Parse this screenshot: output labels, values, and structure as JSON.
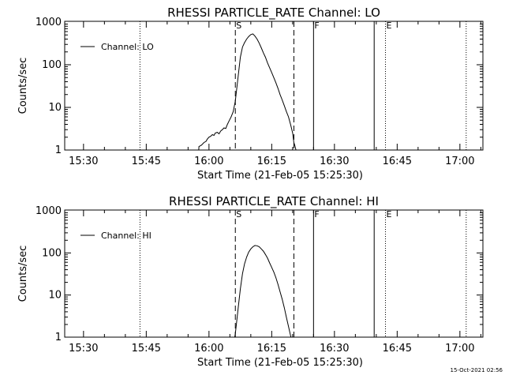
{
  "chart_data": [
    {
      "type": "line",
      "title": "RHESSI PARTICLE_RATE Channel: LO",
      "xlabel": "Start Time (21-Feb-05 15:25:30)",
      "ylabel": "Counts/sec",
      "x_tick_labels": [
        "15:30",
        "15:45",
        "16:00",
        "16:15",
        "16:30",
        "16:45",
        "17:00"
      ],
      "x_tick_minutes": [
        30,
        45,
        60,
        75,
        90,
        105,
        120
      ],
      "xlim_minutes": [
        25.5,
        125.5
      ],
      "y_scale": "log",
      "y_tick_labels": [
        "1",
        "10",
        "100",
        "1000"
      ],
      "ylim": [
        1,
        1000
      ],
      "legend": {
        "label": "Channel: LO",
        "placement": "top-left"
      },
      "markers": [
        {
          "label": "S",
          "minute": 66.3,
          "style": "dashed"
        },
        {
          "label": "",
          "minute": 80.3,
          "style": "dashed"
        },
        {
          "label": "F",
          "minute": 85.0,
          "style": "solid"
        },
        {
          "label": "",
          "minute": 99.5,
          "style": "solid"
        },
        {
          "label": "E",
          "minute": 102.2,
          "style": "dotted"
        },
        {
          "label": "",
          "minute": 43.5,
          "style": "dotted"
        },
        {
          "label": "",
          "minute": 121.5,
          "style": "dotted"
        }
      ],
      "series": [
        {
          "name": "Channel: LO",
          "points": [
            [
              57.5,
              0.8
            ],
            [
              57.6,
              1.2
            ],
            [
              58.2,
              1.3
            ],
            [
              58.8,
              1.5
            ],
            [
              59.3,
              1.6
            ],
            [
              59.6,
              1.8
            ],
            [
              60.0,
              2.0
            ],
            [
              60.4,
              2.1
            ],
            [
              60.8,
              2.3
            ],
            [
              61.2,
              2.2
            ],
            [
              61.5,
              2.5
            ],
            [
              62.0,
              2.6
            ],
            [
              62.4,
              2.4
            ],
            [
              62.8,
              2.8
            ],
            [
              63.2,
              3.0
            ],
            [
              63.6,
              3.3
            ],
            [
              64.0,
              3.2
            ],
            [
              64.4,
              4.0
            ],
            [
              64.8,
              4.8
            ],
            [
              65.3,
              6.0
            ],
            [
              65.8,
              8.0
            ],
            [
              66.3,
              14.0
            ],
            [
              67.0,
              55.0
            ],
            [
              67.5,
              150.0
            ],
            [
              68.0,
              260.0
            ],
            [
              68.5,
              330.0
            ],
            [
              69.0,
              400.0
            ],
            [
              69.5,
              460.0
            ],
            [
              70.0,
              510.0
            ],
            [
              70.5,
              530.0
            ],
            [
              71.0,
              470.0
            ],
            [
              71.5,
              400.0
            ],
            [
              72.0,
              320.0
            ],
            [
              72.5,
              250.0
            ],
            [
              73.0,
              190.0
            ],
            [
              73.5,
              150.0
            ],
            [
              74.0,
              110.0
            ],
            [
              74.5,
              85.0
            ],
            [
              75.0,
              65.0
            ],
            [
              75.5,
              50.0
            ],
            [
              76.0,
              38.0
            ],
            [
              76.5,
              28.0
            ],
            [
              77.0,
              20.0
            ],
            [
              77.5,
              15.0
            ],
            [
              78.0,
              11.0
            ],
            [
              78.5,
              8.0
            ],
            [
              79.0,
              6.0
            ],
            [
              79.5,
              4.0
            ],
            [
              80.0,
              2.5
            ],
            [
              80.3,
              1.5
            ],
            [
              80.5,
              1.3
            ],
            [
              80.8,
              1.0
            ],
            [
              81.0,
              0.8
            ]
          ]
        }
      ]
    },
    {
      "type": "line",
      "title": "RHESSI PARTICLE_RATE Channel: HI",
      "xlabel": "Start Time (21-Feb-05 15:25:30)",
      "ylabel": "Counts/sec",
      "x_tick_labels": [
        "15:30",
        "15:45",
        "16:00",
        "16:15",
        "16:30",
        "16:45",
        "17:00"
      ],
      "x_tick_minutes": [
        30,
        45,
        60,
        75,
        90,
        105,
        120
      ],
      "xlim_minutes": [
        25.5,
        125.5
      ],
      "y_scale": "log",
      "y_tick_labels": [
        "1",
        "10",
        "100",
        "1000"
      ],
      "ylim": [
        1,
        1000
      ],
      "legend": {
        "label": "Channel: HI",
        "placement": "top-left"
      },
      "markers": [
        {
          "label": "S",
          "minute": 66.3,
          "style": "dashed"
        },
        {
          "label": "",
          "minute": 80.3,
          "style": "dashed"
        },
        {
          "label": "F",
          "minute": 85.0,
          "style": "solid"
        },
        {
          "label": "",
          "minute": 99.5,
          "style": "solid"
        },
        {
          "label": "E",
          "minute": 102.2,
          "style": "dotted"
        },
        {
          "label": "",
          "minute": 43.5,
          "style": "dotted"
        },
        {
          "label": "",
          "minute": 121.5,
          "style": "dotted"
        }
      ],
      "series": [
        {
          "name": "Channel: HI",
          "points": [
            [
              66.0,
              0.8
            ],
            [
              66.3,
              1.2
            ],
            [
              66.6,
              2.2
            ],
            [
              67.0,
              5.0
            ],
            [
              67.5,
              14.0
            ],
            [
              68.0,
              32.0
            ],
            [
              68.5,
              55.0
            ],
            [
              69.0,
              80.0
            ],
            [
              69.5,
              105.0
            ],
            [
              70.0,
              125.0
            ],
            [
              70.5,
              140.0
            ],
            [
              71.0,
              150.0
            ],
            [
              71.5,
              148.0
            ],
            [
              72.0,
              140.0
            ],
            [
              72.5,
              125.0
            ],
            [
              73.0,
              110.0
            ],
            [
              73.5,
              92.0
            ],
            [
              74.0,
              75.0
            ],
            [
              74.5,
              58.0
            ],
            [
              75.0,
              45.0
            ],
            [
              75.5,
              35.0
            ],
            [
              76.0,
              26.0
            ],
            [
              76.5,
              18.0
            ],
            [
              77.0,
              12.0
            ],
            [
              77.5,
              8.0
            ],
            [
              78.0,
              5.0
            ],
            [
              78.5,
              3.0
            ],
            [
              79.0,
              1.8
            ],
            [
              79.5,
              1.1
            ],
            [
              79.8,
              0.8
            ]
          ]
        }
      ]
    }
  ],
  "footer_timestamp": "15-Oct-2021 02:56"
}
